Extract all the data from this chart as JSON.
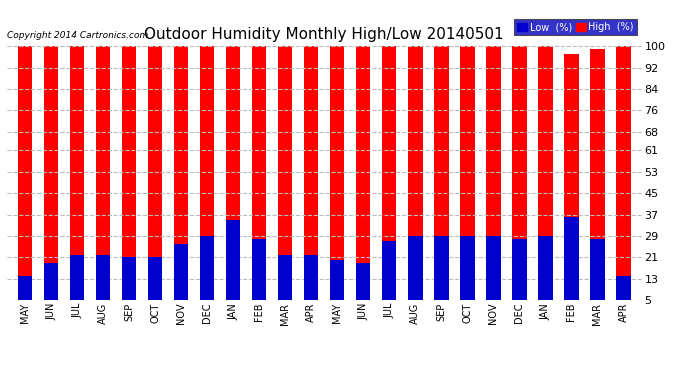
{
  "title": "Outdoor Humidity Monthly High/Low 20140501",
  "copyright": "Copyright 2014 Cartronics.com",
  "months": [
    "MAY",
    "JUN",
    "JUL",
    "AUG",
    "SEP",
    "OCT",
    "NOV",
    "DEC",
    "JAN",
    "FEB",
    "MAR",
    "APR",
    "MAY",
    "JUN",
    "JUL",
    "AUG",
    "SEP",
    "OCT",
    "NOV",
    "DEC",
    "JAN",
    "FEB",
    "MAR",
    "APR"
  ],
  "high_values": [
    100,
    100,
    100,
    100,
    100,
    100,
    100,
    100,
    100,
    100,
    100,
    100,
    100,
    100,
    100,
    100,
    100,
    100,
    100,
    100,
    100,
    97,
    99,
    100
  ],
  "low_values": [
    14,
    19,
    22,
    22,
    21,
    21,
    26,
    29,
    35,
    28,
    22,
    22,
    20,
    19,
    27,
    29,
    29,
    29,
    29,
    28,
    29,
    36,
    28,
    14
  ],
  "high_color": "#ff0000",
  "low_color": "#0000cc",
  "background_color": "#ffffff",
  "grid_color": "#bbbbbb",
  "yticks": [
    5,
    13,
    21,
    29,
    37,
    45,
    53,
    61,
    68,
    76,
    84,
    92,
    100
  ],
  "ymin": 5,
  "ymax": 100,
  "legend_low_label": "Low  (%)",
  "legend_high_label": "High  (%)"
}
